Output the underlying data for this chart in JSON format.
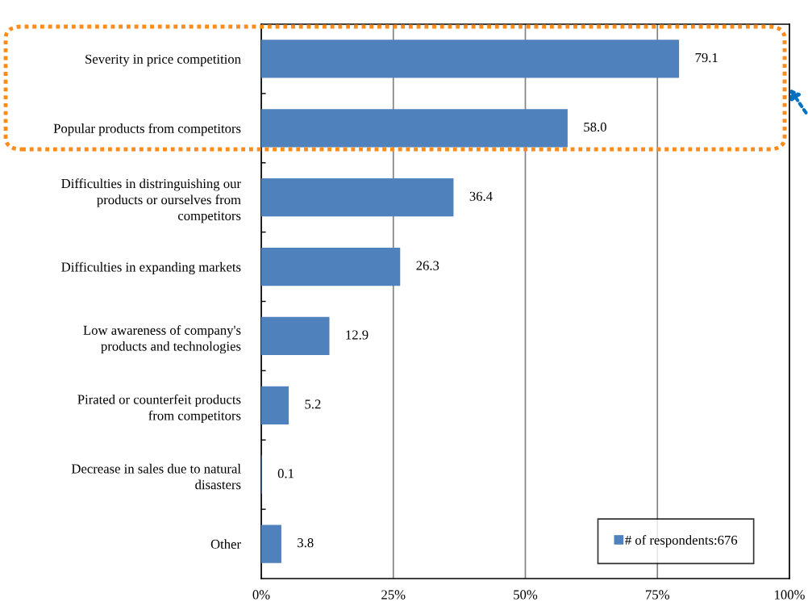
{
  "chart_data": {
    "type": "bar",
    "orientation": "horizontal",
    "categories": [
      "Severity in price competition",
      "Popular products from competitors",
      "Difficulties in distringuishing our\nproducts or ourselves from\ncompetitors",
      "Difficulties in expanding markets",
      "Low awareness of company's\nproducts and technologies",
      "Pirated or counterfeit products\nfrom competitors",
      "Decrease in sales due to natural\ndisasters",
      "Other"
    ],
    "series": [
      {
        "name": "# of respondents:676",
        "color": "#4f81bd",
        "values": [
          79.1,
          58.0,
          36.4,
          26.3,
          12.9,
          5.2,
          0.1,
          3.8
        ],
        "value_labels": [
          "79.1",
          "58.0",
          "36.4",
          "26.3",
          "12.9",
          "5.2",
          "0.1",
          "3.8"
        ]
      }
    ],
    "xlim": [
      0,
      100
    ],
    "xticks": [
      {
        "value": 0,
        "label": "0%"
      },
      {
        "value": 25,
        "label": "25%"
      },
      {
        "value": 50,
        "label": "50%"
      },
      {
        "value": 75,
        "label": "75%"
      },
      {
        "value": 100,
        "label": "100%"
      }
    ],
    "grid": "x",
    "legend": "bottom right"
  }
}
